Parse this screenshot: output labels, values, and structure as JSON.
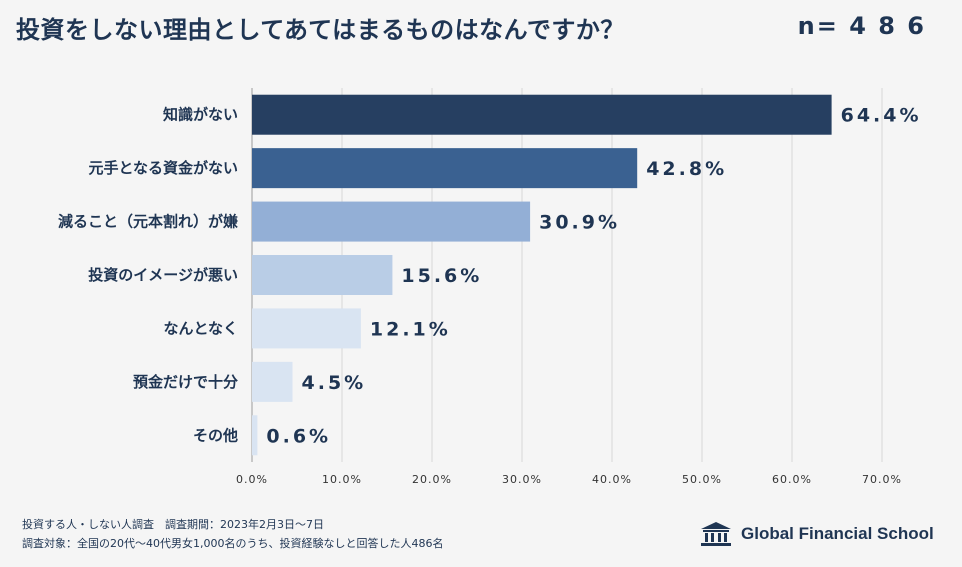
{
  "header": {
    "title": "投資をしない理由としてあてはまるものはなんですか？",
    "sample_size": "n= 4 8 6"
  },
  "chart_data": {
    "type": "bar",
    "orientation": "horizontal",
    "categories": [
      "知識がない",
      "元手となる資金がない",
      "減ること（元本割れ）が嫌",
      "投資のイメージが悪い",
      "なんとなく",
      "預金だけで十分",
      "その他"
    ],
    "values": [
      64.4,
      42.8,
      30.9,
      15.6,
      12.1,
      4.5,
      0.6
    ],
    "value_labels": [
      "64.4%",
      "42.8%",
      "30.9%",
      "15.6%",
      "12.1%",
      "4.5%",
      "0.6%"
    ],
    "colors": [
      "#263f61",
      "#3a6191",
      "#93afd6",
      "#b9cde6",
      "#d9e4f2",
      "#d9e4f2",
      "#d9e4f2"
    ],
    "xlim": [
      0,
      70
    ],
    "xticks": [
      0,
      10,
      20,
      30,
      40,
      50,
      60,
      70
    ],
    "xtick_labels": [
      "0.0%",
      "10.0%",
      "20.0%",
      "30.0%",
      "40.0%",
      "50.0%",
      "60.0%",
      "70.0%"
    ],
    "grid": true
  },
  "footer": {
    "line1": "投資する人・しない人調査　調査期間：2023年2月3日～7日",
    "line2": "調査対象：全国の20代～40代男女1,000名のうち、投資経験なしと回答した人486名",
    "logo_text": "Global Financial School"
  }
}
